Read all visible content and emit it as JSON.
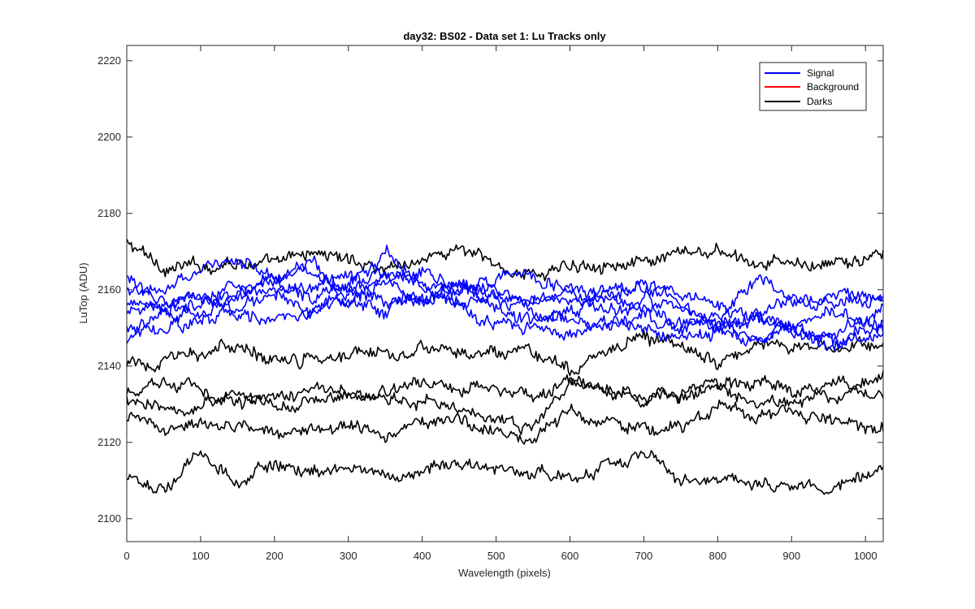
{
  "chart_data": {
    "type": "line",
    "title": "day32: BS02 - Data set 1: Lu Tracks only",
    "xlabel": "Wavelength (pixels)",
    "ylabel": "LuTop (ADU)",
    "xlim": [
      0,
      1024
    ],
    "ylim": [
      2094,
      2224
    ],
    "xticks": [
      0,
      100,
      200,
      300,
      400,
      500,
      600,
      700,
      800,
      900,
      1000
    ],
    "yticks": [
      2100,
      2120,
      2140,
      2160,
      2180,
      2200,
      2220
    ],
    "grid": false,
    "legend": {
      "position": "top-right",
      "entries": [
        {
          "label": "Signal",
          "color": "#0000ff"
        },
        {
          "label": "Background",
          "color": "#ff0000"
        },
        {
          "label": "Darks",
          "color": "#000000"
        }
      ]
    },
    "series_colors": {
      "Signal": "#0000ff",
      "Background": "#ff0000",
      "Darks": "#000000"
    },
    "series": [
      {
        "name": "Darks",
        "group": "Darks",
        "x": [
          0,
          50,
          100,
          150,
          200,
          250,
          300,
          350,
          400,
          450,
          500,
          550,
          600,
          650,
          700,
          750,
          800,
          850,
          900,
          950,
          1024
        ],
        "values": [
          2172,
          2166,
          2166,
          2168,
          2166,
          2170,
          2168,
          2166,
          2168,
          2171,
          2166,
          2164,
          2166,
          2168,
          2166,
          2169,
          2170,
          2166,
          2167,
          2166,
          2169
        ]
      },
      {
        "name": "Darks",
        "group": "Darks",
        "x": [
          0,
          50,
          100,
          150,
          200,
          250,
          300,
          350,
          400,
          450,
          500,
          550,
          600,
          650,
          700,
          750,
          800,
          850,
          900,
          950,
          1024
        ],
        "values": [
          2140,
          2141,
          2143,
          2145,
          2142,
          2143,
          2144,
          2144,
          2145,
          2143,
          2142,
          2143,
          2138,
          2145,
          2148,
          2146,
          2140,
          2147,
          2145,
          2144,
          2145
        ]
      },
      {
        "name": "Darks",
        "group": "Darks",
        "x": [
          0,
          50,
          100,
          150,
          200,
          250,
          300,
          350,
          400,
          450,
          500,
          550,
          600,
          650,
          700,
          750,
          800,
          850,
          900,
          950,
          1024
        ],
        "values": [
          2132,
          2136,
          2134,
          2131,
          2133,
          2134,
          2132,
          2133,
          2137,
          2134,
          2136,
          2131,
          2136,
          2133,
          2131,
          2133,
          2135,
          2136,
          2134,
          2132,
          2137
        ]
      },
      {
        "name": "Darks",
        "group": "Darks",
        "x": [
          0,
          50,
          100,
          150,
          200,
          250,
          300,
          350,
          400,
          450,
          500,
          550,
          600,
          650,
          700,
          750,
          800,
          850,
          900,
          950,
          1024
        ],
        "values": [
          2131,
          2128,
          2130,
          2133,
          2129,
          2131,
          2132,
          2130,
          2132,
          2129,
          2127,
          2125,
          2136,
          2133,
          2131,
          2132,
          2134,
          2130,
          2132,
          2135,
          2133
        ]
      },
      {
        "name": "Darks",
        "group": "Darks",
        "x": [
          0,
          50,
          100,
          150,
          200,
          250,
          300,
          350,
          400,
          450,
          500,
          550,
          600,
          650,
          700,
          750,
          800,
          850,
          900,
          950,
          1024
        ],
        "values": [
          2126,
          2124,
          2125,
          2124,
          2122,
          2125,
          2124,
          2122,
          2127,
          2125,
          2124,
          2120,
          2128,
          2126,
          2123,
          2124,
          2129,
          2126,
          2128,
          2126,
          2124
        ]
      },
      {
        "name": "Darks",
        "group": "Darks",
        "x": [
          0,
          50,
          100,
          150,
          200,
          250,
          300,
          350,
          400,
          450,
          500,
          550,
          600,
          650,
          700,
          750,
          800,
          850,
          900,
          950,
          1024
        ],
        "values": [
          2110,
          2108,
          2117,
          2110,
          2114,
          2112,
          2114,
          2111,
          2112,
          2116,
          2113,
          2112,
          2110,
          2114,
          2117,
          2110,
          2112,
          2110,
          2108,
          2109,
          2112
        ]
      },
      {
        "name": "Signal",
        "group": "Signal",
        "x": [
          0,
          50,
          100,
          150,
          200,
          250,
          300,
          350,
          400,
          450,
          500,
          550,
          600,
          650,
          700,
          750,
          800,
          850,
          900,
          950,
          1024
        ],
        "values": [
          2164,
          2155,
          2158,
          2162,
          2160,
          2162,
          2164,
          2163,
          2161,
          2160,
          2159,
          2157,
          2156,
          2155,
          2154,
          2152,
          2150,
          2153,
          2150,
          2147,
          2155
        ]
      },
      {
        "name": "Signal",
        "group": "Signal",
        "x": [
          0,
          50,
          100,
          150,
          200,
          250,
          300,
          350,
          400,
          450,
          500,
          550,
          600,
          650,
          700,
          750,
          800,
          850,
          900,
          950,
          1024
        ],
        "values": [
          2160,
          2158,
          2165,
          2168,
          2163,
          2166,
          2160,
          2163,
          2165,
          2160,
          2163,
          2165,
          2160,
          2158,
          2162,
          2158,
          2156,
          2154,
          2156,
          2158,
          2156
        ]
      },
      {
        "name": "Signal",
        "group": "Signal",
        "x": [
          0,
          50,
          100,
          150,
          200,
          250,
          300,
          350,
          400,
          450,
          500,
          550,
          600,
          650,
          700,
          750,
          800,
          850,
          900,
          950,
          1024
        ],
        "values": [
          2157,
          2154,
          2156,
          2160,
          2163,
          2158,
          2160,
          2171,
          2162,
          2160,
          2158,
          2157,
          2159,
          2156,
          2157,
          2155,
          2152,
          2148,
          2150,
          2146,
          2151
        ]
      },
      {
        "name": "Signal",
        "group": "Signal",
        "x": [
          0,
          50,
          100,
          150,
          200,
          250,
          300,
          350,
          400,
          450,
          500,
          550,
          600,
          650,
          700,
          750,
          800,
          850,
          900,
          950,
          1024
        ],
        "values": [
          2154,
          2157,
          2159,
          2155,
          2160,
          2153,
          2157,
          2163,
          2157,
          2156,
          2158,
          2154,
          2152,
          2150,
          2153,
          2150,
          2152,
          2163,
          2158,
          2156,
          2159
        ]
      },
      {
        "name": "Signal",
        "group": "Signal",
        "x": [
          0,
          50,
          100,
          150,
          200,
          250,
          300,
          350,
          400,
          450,
          500,
          550,
          600,
          650,
          700,
          750,
          800,
          850,
          900,
          950,
          1024
        ],
        "values": [
          2150,
          2155,
          2154,
          2158,
          2162,
          2165,
          2160,
          2157,
          2158,
          2162,
          2155,
          2152,
          2155,
          2160,
          2162,
          2157,
          2150,
          2148,
          2152,
          2155,
          2150
        ]
      },
      {
        "name": "Signal",
        "group": "Signal",
        "x": [
          0,
          50,
          100,
          150,
          200,
          250,
          300,
          350,
          400,
          450,
          500,
          550,
          600,
          650,
          700,
          750,
          800,
          850,
          900,
          950,
          1024
        ],
        "values": [
          2147,
          2150,
          2152,
          2154,
          2152,
          2155,
          2157,
          2154,
          2158,
          2156,
          2152,
          2150,
          2148,
          2152,
          2150,
          2147,
          2149,
          2152,
          2149,
          2146,
          2148
        ]
      }
    ]
  }
}
